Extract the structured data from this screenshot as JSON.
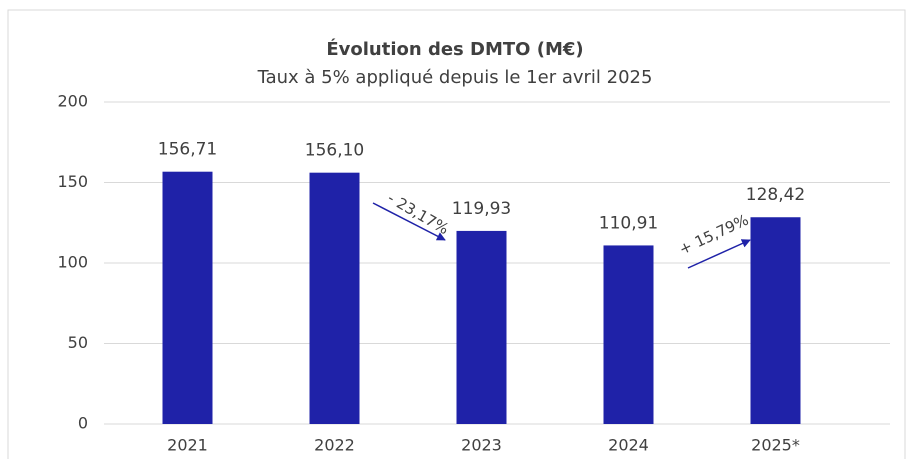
{
  "chart_data": {
    "type": "bar",
    "title": "Évolution des DMTO (M€)",
    "subtitle": "Taux à 5% appliqué depuis le 1er avril 2025",
    "categories": [
      "2021",
      "2022",
      "2023",
      "2024",
      "2025*"
    ],
    "values": [
      156.71,
      156.1,
      119.93,
      110.91,
      128.42
    ],
    "value_labels": [
      "156,71",
      "156,10",
      "119,93",
      "110,91",
      "128,42"
    ],
    "color": "#1f22a8",
    "ylim": [
      0,
      200
    ],
    "yticks": [
      0,
      50,
      100,
      150,
      200
    ],
    "grid": true,
    "annotations": [
      "- 23,17%",
      "+ 15,79%"
    ]
  }
}
